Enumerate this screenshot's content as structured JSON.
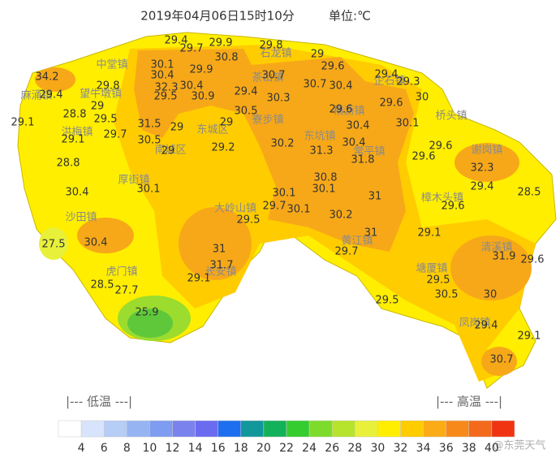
{
  "header": {
    "time": "2019年04月06日15时10分",
    "unit": "单位:℃"
  },
  "readings": [
    34.2,
    29.4,
    29.1,
    29.8,
    28.8,
    29,
    29.5,
    29.1,
    29.7,
    28.8,
    30.4,
    30.1,
    31.5,
    30.5,
    29,
    29,
    29.2,
    29.4,
    29.7,
    29.9,
    30.8,
    30.1,
    30.4,
    29.9,
    32.3,
    30.4,
    29.5,
    30.9,
    29.4,
    30.5,
    29,
    29.8,
    29,
    29.6,
    30.7,
    30.3,
    30.7,
    30.4,
    29.6,
    30.4,
    30.2,
    31.3,
    30.4,
    31.8,
    29.4,
    29.3,
    30,
    29.6,
    30.1,
    29.6,
    29.6,
    32.3,
    29.4,
    28.5,
    29.6,
    30.8,
    30.1,
    30.1,
    29.7,
    30.1,
    30.2,
    31,
    31,
    29.7,
    29.5,
    29.1,
    31.9,
    29.6,
    29.5,
    30.5,
    30,
    29.5,
    29.4,
    29.1,
    30.7,
    31,
    31.7,
    29.1,
    30.4,
    27.5,
    28.5,
    27.7,
    25.9
  ],
  "places": [
    "中堂镇",
    "麻涌镇",
    "望牛墩镇",
    "洪梅镇",
    "南城区",
    "东城区",
    "厚街镇",
    "沙田镇",
    "虎门镇",
    "长安镇",
    "大岭山镇",
    "寮步镇",
    "石龙镇",
    "茶山镇",
    "东坑镇",
    "横沥镇",
    "常平镇",
    "企石镇",
    "桥头镇",
    "樟木头镇",
    "黄江镇",
    "塘厦镇",
    "清溪镇",
    "凤岗镇",
    "谢岗镇"
  ],
  "legend": {
    "low": "|--- 低温 ---|",
    "high": "|--- 高温 ---|",
    "colors": [
      "#ffffff",
      "#d8e4fb",
      "#b6cdf6",
      "#97b4f2",
      "#7e9cf0",
      "#7a82ee",
      "#6b6bf0",
      "#1d6ff0",
      "#12979b",
      "#13b25a",
      "#35cc2f",
      "#7ddc2b",
      "#b6e32b",
      "#e8f03a",
      "#ffee00",
      "#ffcc00",
      "#fbab15",
      "#f7891a",
      "#f46a1c",
      "#f03412"
    ],
    "ticks": [
      4,
      6,
      8,
      10,
      12,
      14,
      16,
      18,
      20,
      22,
      24,
      26,
      28,
      30,
      32,
      34,
      36,
      38,
      40
    ]
  },
  "watermark": "@东莞天气"
}
